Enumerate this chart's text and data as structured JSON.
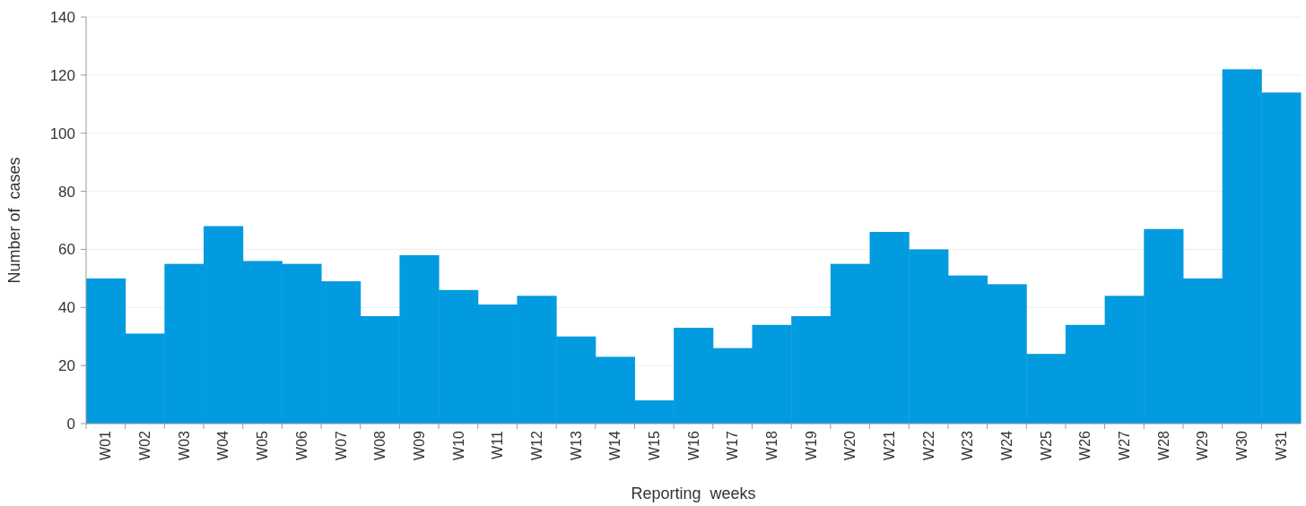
{
  "chart_data": {
    "type": "bar",
    "xlabel": "Reporting  weeks",
    "ylabel": "Number of  cases",
    "categories": [
      "W01",
      "W02",
      "W03",
      "W04",
      "W05",
      "W06",
      "W07",
      "W08",
      "W09",
      "W10",
      "W11",
      "W12",
      "W13",
      "W14",
      "W15",
      "W16",
      "W17",
      "W18",
      "W19",
      "W20",
      "W21",
      "W22",
      "W23",
      "W24",
      "W25",
      "W26",
      "W27",
      "W28",
      "W29",
      "W30",
      "W31"
    ],
    "values": [
      50,
      31,
      55,
      68,
      56,
      55,
      49,
      37,
      58,
      46,
      41,
      44,
      30,
      23,
      8,
      33,
      26,
      34,
      37,
      55,
      66,
      60,
      51,
      48,
      24,
      34,
      44,
      67,
      50,
      122,
      114
    ],
    "color": "#039be0",
    "ylim": [
      0,
      140
    ],
    "yticks": [
      0,
      20,
      40,
      60,
      80,
      100,
      120,
      140
    ],
    "grid": "y"
  }
}
